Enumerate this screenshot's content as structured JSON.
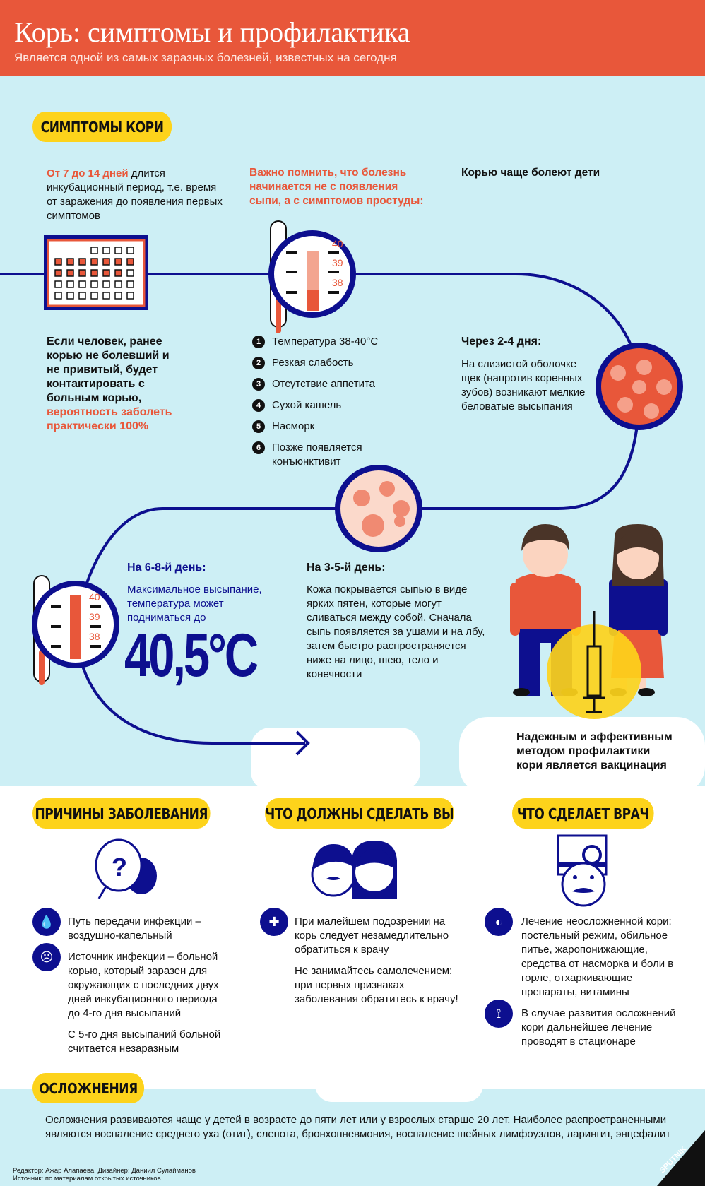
{
  "header": {
    "title": "Корь: симптомы и профилактика",
    "subtitle": "Является одной из самых заразных болезней, известных на сегодня"
  },
  "colors": {
    "accent": "#e8573a",
    "navy": "#0d0f8f",
    "yellow": "#fdd31b",
    "sky": "#cdeff5"
  },
  "symptoms": {
    "pill": "СИМПТОМЫ КОРИ",
    "incubation_highlight": "От 7 до 14 дней",
    "incubation_text": " длится инкубационный период, т.е. время от заражения до появления первых симптомов",
    "important": "Важно помнить, что болезнь начинается не с появления сыпи, а с симптомов простуды:",
    "children": "Корью чаще болеют дети",
    "contact_text": "Если человек, ранее корью не болевший и не привитый, будет контактировать с больным корью,",
    "contact_highlight": "вероятность заболеть практически 100%",
    "thermo_labels": [
      "40",
      "39",
      "38"
    ],
    "list": [
      {
        "n": "1",
        "text": "Температура 38-40°С"
      },
      {
        "n": "2",
        "text": "Резкая слабость"
      },
      {
        "n": "3",
        "text": "Отсутствие аппетита"
      },
      {
        "n": "4",
        "text": "Сухой кашель"
      },
      {
        "n": "5",
        "text": "Насморк"
      },
      {
        "n": "6",
        "text": "Позже появляется конъюнктивит"
      }
    ],
    "day2_title": "Через 2-4 дня:",
    "day2_text": "На слизистой оболочке щек (напротив коренных зубов) возникают мелкие беловатые высыпания",
    "day6_title": "На 6-8-й день:",
    "day6_text": "Максимальное высыпание, температура может подниматься до",
    "day6_temp": "40,5°С",
    "day3_title": "На 3-5-й день:",
    "day3_text": "Кожа покрывается сыпью в виде ярких пятен, которые могут сливаться между собой. Сначала сыпь появляется за ушами и на лбу, затем быстро распространяется ниже на лицо, шею, тело и конечности",
    "vaccine": "Надежным и эффективным методом профилактики кори является вакцинация"
  },
  "causes": {
    "pill": "ПРИЧИНЫ ЗАБОЛЕВАНИЯ",
    "items": [
      {
        "icon": "droplet-icon",
        "text": "Путь передачи инфекции – воздушно-капельный"
      },
      {
        "icon": "sick-face-icon",
        "text": "Источник инфекции – больной корью, который заразен для окружающих с последних двух дней инкубационного периода до 4-го дня высыпаний"
      }
    ],
    "note": "С 5-го дня высыпаний больной считается незаразным"
  },
  "you": {
    "pill": "ЧТО ДОЛЖНЫ СДЕЛАТЬ ВЫ",
    "items": [
      {
        "icon": "medical-cross-icon",
        "text": "При малейшем подозрении на корь следует незамедлительно обратиться к врачу"
      }
    ],
    "note": "Не занимайтесь самолечением: при первых признаках заболевания обратитесь к врачу!"
  },
  "doctor": {
    "pill": "ЧТО СДЕЛАЕТ ВРАЧ",
    "items": [
      {
        "icon": "pill-icon",
        "text": "Лечение неосложненной кори: постельный режим, обильное питье, жаропонижающие, средства от насморка и боли в горле, отхаркивающие препараты, витамины"
      },
      {
        "icon": "syringe-icon",
        "text": "В случае развития осложнений кори дальнейшее лечение проводят в стационаре"
      }
    ]
  },
  "complications": {
    "pill": "ОСЛОЖНЕНИЯ",
    "text": "Осложнения развиваются чаще у детей в возрасте до пяти лет или у взрослых старше 20 лет. Наиболее распространенными являются воспаление среднего уха (отит), слепота, бронхопневмония, воспаление шейных лимфоузлов, ларингит, энцефалит"
  },
  "credits": {
    "line1": "Редактор: Ажар Алапаева. Дизайнер: Даниил Сулайманов",
    "line2": "Источник: по материалам открытых источников"
  },
  "logo": "SPUTNIK"
}
